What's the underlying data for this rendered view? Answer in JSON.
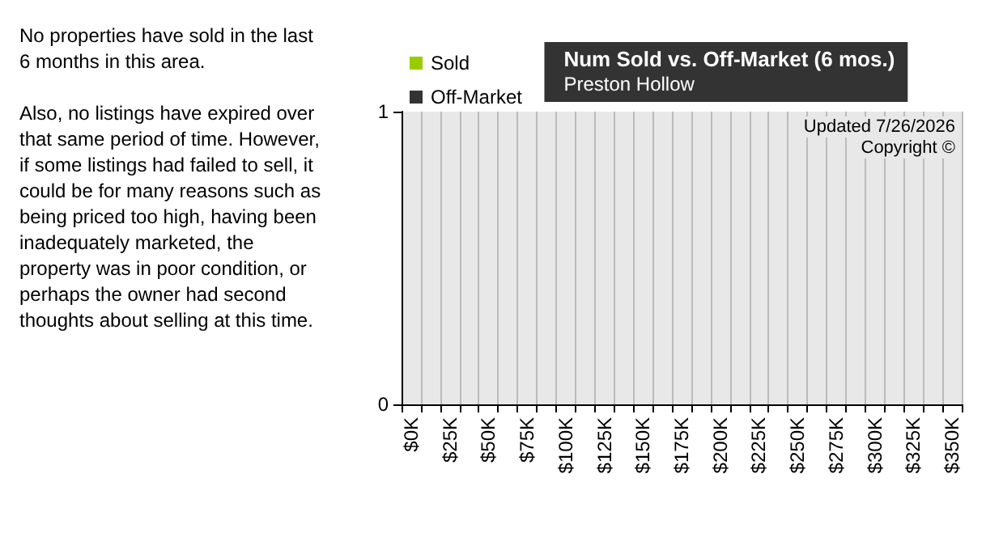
{
  "chart_data": {
    "type": "bar",
    "title": "Num Sold vs. Off-Market (6 mos.)",
    "subtitle": "Preston Hollow",
    "categories": [
      "$0K",
      null,
      "$25K",
      null,
      "$50K",
      null,
      "$75K",
      null,
      "$100K",
      null,
      "$125K",
      null,
      "$150K",
      null,
      "$175K",
      null,
      "$200K",
      null,
      "$225K",
      null,
      "$250K",
      null,
      "$275K",
      null,
      "$300K",
      null,
      "$325K",
      null,
      "$350K"
    ],
    "series": [
      {
        "name": "Sold",
        "color": "#99cc00",
        "values": [
          0,
          0,
          0,
          0,
          0,
          0,
          0,
          0,
          0,
          0,
          0,
          0,
          0,
          0,
          0,
          0,
          0,
          0,
          0,
          0,
          0,
          0,
          0,
          0,
          0,
          0,
          0,
          0,
          0
        ]
      },
      {
        "name": "Off-Market",
        "color": "#333333",
        "values": [
          0,
          0,
          0,
          0,
          0,
          0,
          0,
          0,
          0,
          0,
          0,
          0,
          0,
          0,
          0,
          0,
          0,
          0,
          0,
          0,
          0,
          0,
          0,
          0,
          0,
          0,
          0,
          0,
          0
        ]
      }
    ],
    "ylim": [
      0,
      1
    ],
    "yticks": [
      0,
      1
    ],
    "grid": "x",
    "legend": "top left",
    "annotations": [
      "No properties have sold in the last 6 months in this area.",
      "Also, no listings have expired over that same period of time. However, if some listings had failed to sell, it could be for many reasons such as being priced too high, having been inadequately marketed, the property was in poor condition, or perhaps the owner had second thoughts about selling at this time.",
      "Updated 7/26/2026",
      "Copyright ©"
    ]
  }
}
